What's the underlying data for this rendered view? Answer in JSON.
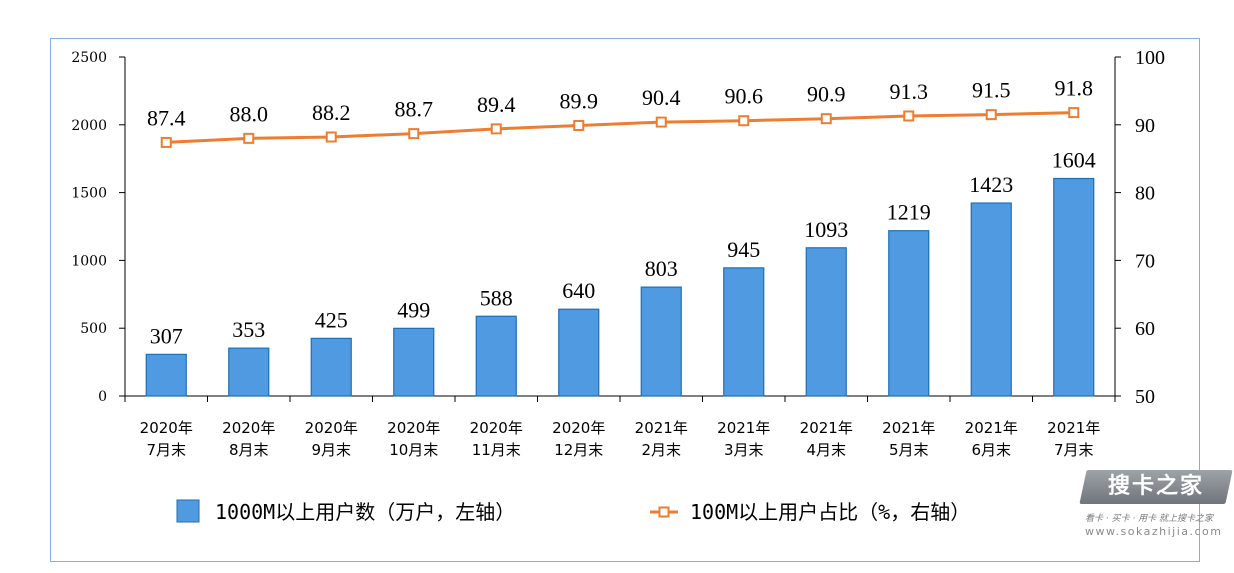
{
  "chart_data": {
    "type": "bar+line",
    "categories": [
      "2020年\n7月末",
      "2020年\n8月末",
      "2020年\n9月末",
      "2020年\n10月末",
      "2020年\n11月末",
      "2020年\n12月末",
      "2021年\n2月末",
      "2021年\n3月末",
      "2021年\n4月末",
      "2021年\n5月末",
      "2021年\n6月末",
      "2021年\n7月末"
    ],
    "series": [
      {
        "name": "1000M以上用户数（万户，左轴）",
        "type": "bar",
        "axis": "left",
        "color": "#4f9ae0",
        "values": [
          307,
          353,
          425,
          499,
          588,
          640,
          803,
          945,
          1093,
          1219,
          1423,
          1604
        ]
      },
      {
        "name": "100M以上用户占比（%，右轴）",
        "type": "line",
        "axis": "right",
        "color": "#ed7d31",
        "marker": "hollow-square",
        "values": [
          87.4,
          88.0,
          88.2,
          88.7,
          89.4,
          89.9,
          90.4,
          90.6,
          90.9,
          91.3,
          91.5,
          91.8
        ]
      }
    ],
    "ylim_left": [
      0,
      2500
    ],
    "yticks_left": [
      0,
      500,
      1000,
      1500,
      2000,
      2500
    ],
    "ylim_right": [
      50,
      100
    ],
    "yticks_right": [
      50,
      60,
      70,
      80,
      90,
      100
    ],
    "grid": false,
    "legend_position": "bottom"
  },
  "watermark": {
    "logo_text": "搜卡之家",
    "tagline": "看卡 · 买卡 · 用卡 就上搜卡之家",
    "url": "www.sokazhijia.com"
  }
}
